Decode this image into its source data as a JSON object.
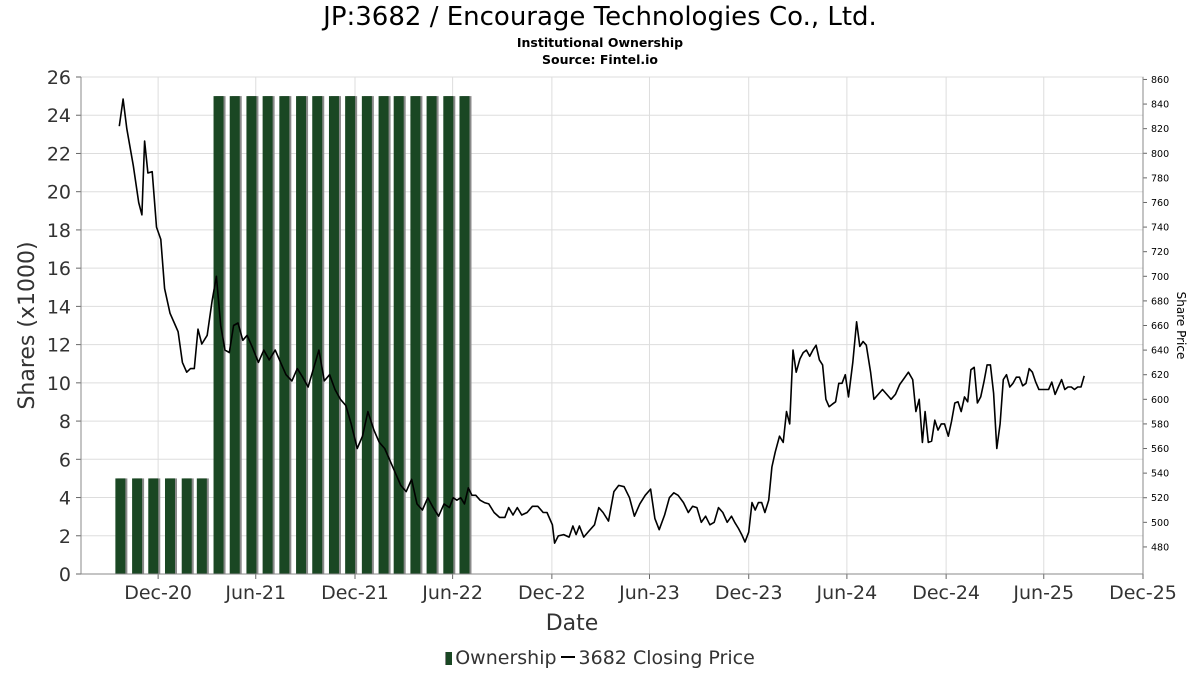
{
  "title": "JP:3682 / Encourage Technologies Co., Ltd.",
  "subtitle1": "Institutional Ownership",
  "subtitle2": "Source: Fintel.io",
  "legend": {
    "ownership_label": "Ownership",
    "price_label": "3682 Closing Price"
  },
  "colors": {
    "bar_fill": "#1a4723",
    "bar_shadow": "#8a8a8a",
    "line": "#000000",
    "grid": "#dddddd"
  },
  "chart_data": {
    "type": "bar",
    "xlabel": "Date",
    "ylabel": "Shares (x1000)",
    "y2label": "Share Price",
    "ylim": [
      0,
      26
    ],
    "y2lim": [
      458,
      862
    ],
    "yticks": [
      0,
      2,
      4,
      6,
      8,
      10,
      12,
      14,
      16,
      18,
      20,
      22,
      24,
      26
    ],
    "y2ticks": [
      480,
      500,
      520,
      540,
      560,
      580,
      600,
      620,
      640,
      660,
      680,
      700,
      720,
      740,
      760,
      780,
      800,
      820,
      840,
      860
    ],
    "xlim": [
      "2020-08-10",
      "2025-12-31"
    ],
    "xticks": [
      {
        "label": "Dec-20",
        "date": "2020-12-31"
      },
      {
        "label": "Jun-21",
        "date": "2021-06-30"
      },
      {
        "label": "Dec-21",
        "date": "2021-12-31"
      },
      {
        "label": "Jun-22",
        "date": "2022-06-30"
      },
      {
        "label": "Dec-22",
        "date": "2022-12-31"
      },
      {
        "label": "Jun-23",
        "date": "2023-06-30"
      },
      {
        "label": "Dec-23",
        "date": "2023-12-31"
      },
      {
        "label": "Jun-24",
        "date": "2024-06-30"
      },
      {
        "label": "Dec-24",
        "date": "2024-12-31"
      },
      {
        "label": "Jun-25",
        "date": "2025-06-30"
      },
      {
        "label": "Dec-25",
        "date": "2025-12-31"
      }
    ],
    "grid": true,
    "legend_position": "bottom",
    "series": [
      {
        "name": "Ownership",
        "type": "bar",
        "axis": "left",
        "x": [
          "2020-10-22",
          "2020-11-22",
          "2020-12-22",
          "2021-01-22",
          "2021-02-22",
          "2021-03-22",
          "2021-04-22",
          "2021-05-22",
          "2021-06-22",
          "2021-07-22",
          "2021-08-22",
          "2021-09-22",
          "2021-10-22",
          "2021-11-22",
          "2021-12-22",
          "2022-01-22",
          "2022-02-22",
          "2022-03-22",
          "2022-04-22",
          "2022-05-22",
          "2022-06-22",
          "2022-07-22"
        ],
        "values": [
          5,
          5,
          5,
          5,
          5,
          5,
          25,
          25,
          25,
          25,
          25,
          25,
          25,
          25,
          25,
          25,
          25,
          25,
          25,
          25,
          25,
          25
        ]
      },
      {
        "name": "3682 Closing Price",
        "type": "line",
        "axis": "right",
        "points": [
          [
            "2020-10-20",
            822
          ],
          [
            "2020-10-27",
            844
          ],
          [
            "2020-11-03",
            820
          ],
          [
            "2020-11-15",
            790
          ],
          [
            "2020-11-25",
            760
          ],
          [
            "2020-12-01",
            750
          ],
          [
            "2020-12-06",
            810
          ],
          [
            "2020-12-12",
            784
          ],
          [
            "2020-12-20",
            785
          ],
          [
            "2020-12-28",
            740
          ],
          [
            "2021-01-05",
            730
          ],
          [
            "2021-01-12",
            690
          ],
          [
            "2021-01-22",
            670
          ],
          [
            "2021-02-01",
            660
          ],
          [
            "2021-02-06",
            655
          ],
          [
            "2021-02-14",
            630
          ],
          [
            "2021-02-22",
            622
          ],
          [
            "2021-03-01",
            625
          ],
          [
            "2021-03-08",
            625
          ],
          [
            "2021-03-15",
            657
          ],
          [
            "2021-03-22",
            645
          ],
          [
            "2021-04-01",
            652
          ],
          [
            "2021-04-10",
            680
          ],
          [
            "2021-04-18",
            700
          ],
          [
            "2021-04-26",
            660
          ],
          [
            "2021-05-04",
            640
          ],
          [
            "2021-05-12",
            638
          ],
          [
            "2021-05-20",
            660
          ],
          [
            "2021-05-28",
            662
          ],
          [
            "2021-06-06",
            648
          ],
          [
            "2021-06-14",
            652
          ],
          [
            "2021-06-24",
            642
          ],
          [
            "2021-07-05",
            630
          ],
          [
            "2021-07-15",
            640
          ],
          [
            "2021-07-25",
            632
          ],
          [
            "2021-08-05",
            640
          ],
          [
            "2021-08-15",
            630
          ],
          [
            "2021-08-25",
            620
          ],
          [
            "2021-09-05",
            615
          ],
          [
            "2021-09-15",
            625
          ],
          [
            "2021-09-25",
            618
          ],
          [
            "2021-10-05",
            610
          ],
          [
            "2021-10-15",
            625
          ],
          [
            "2021-10-25",
            640
          ],
          [
            "2021-11-04",
            615
          ],
          [
            "2021-11-14",
            620
          ],
          [
            "2021-11-24",
            608
          ],
          [
            "2021-12-04",
            600
          ],
          [
            "2021-12-14",
            595
          ],
          [
            "2021-12-24",
            580
          ],
          [
            "2022-01-04",
            560
          ],
          [
            "2022-01-14",
            570
          ],
          [
            "2022-01-24",
            590
          ],
          [
            "2022-02-04",
            575
          ],
          [
            "2022-02-14",
            565
          ],
          [
            "2022-02-24",
            560
          ],
          [
            "2022-03-06",
            550
          ],
          [
            "2022-03-16",
            540
          ],
          [
            "2022-03-26",
            530
          ],
          [
            "2022-04-05",
            525
          ],
          [
            "2022-04-15",
            535
          ],
          [
            "2022-04-25",
            515
          ],
          [
            "2022-05-05",
            510
          ],
          [
            "2022-05-15",
            520
          ],
          [
            "2022-05-25",
            512
          ],
          [
            "2022-06-04",
            505
          ],
          [
            "2022-06-14",
            515
          ],
          [
            "2022-06-24",
            512
          ],
          [
            "2022-07-01",
            520
          ],
          [
            "2022-07-08",
            518
          ],
          [
            "2022-07-15",
            520
          ],
          [
            "2022-07-22",
            515
          ],
          [
            "2022-07-29",
            528
          ],
          [
            "2022-08-05",
            522
          ],
          [
            "2022-08-12",
            522
          ],
          [
            "2022-08-20",
            518
          ],
          [
            "2022-08-28",
            516
          ],
          [
            "2022-09-05",
            515
          ],
          [
            "2022-09-15",
            508
          ],
          [
            "2022-09-25",
            504
          ],
          [
            "2022-10-05",
            504
          ],
          [
            "2022-10-12",
            512
          ],
          [
            "2022-10-20",
            506
          ],
          [
            "2022-10-28",
            512
          ],
          [
            "2022-11-05",
            506
          ],
          [
            "2022-11-15",
            508
          ],
          [
            "2022-11-25",
            513
          ],
          [
            "2022-12-05",
            513
          ],
          [
            "2022-12-15",
            508
          ],
          [
            "2022-12-22",
            508
          ],
          [
            "2023-01-01",
            498
          ],
          [
            "2023-01-05",
            483
          ],
          [
            "2023-01-12",
            489
          ],
          [
            "2023-01-22",
            490
          ],
          [
            "2023-02-01",
            488
          ],
          [
            "2023-02-08",
            497
          ],
          [
            "2023-02-14",
            490
          ],
          [
            "2023-02-20",
            497
          ],
          [
            "2023-02-28",
            488
          ],
          [
            "2023-03-10",
            493
          ],
          [
            "2023-03-20",
            498
          ],
          [
            "2023-03-28",
            512
          ],
          [
            "2023-04-05",
            508
          ],
          [
            "2023-04-15",
            501
          ],
          [
            "2023-04-25",
            525
          ],
          [
            "2023-05-04",
            530
          ],
          [
            "2023-05-14",
            529
          ],
          [
            "2023-05-24",
            520
          ],
          [
            "2023-06-02",
            505
          ],
          [
            "2023-06-12",
            515
          ],
          [
            "2023-06-22",
            522
          ],
          [
            "2023-07-02",
            527
          ],
          [
            "2023-07-10",
            503
          ],
          [
            "2023-07-18",
            494
          ],
          [
            "2023-07-28",
            506
          ],
          [
            "2023-08-06",
            520
          ],
          [
            "2023-08-14",
            524
          ],
          [
            "2023-08-22",
            522
          ],
          [
            "2023-09-01",
            516
          ],
          [
            "2023-09-10",
            508
          ],
          [
            "2023-09-18",
            513
          ],
          [
            "2023-09-26",
            512
          ],
          [
            "2023-10-04",
            500
          ],
          [
            "2023-10-12",
            505
          ],
          [
            "2023-10-20",
            498
          ],
          [
            "2023-10-28",
            500
          ],
          [
            "2023-11-05",
            512
          ],
          [
            "2023-11-13",
            508
          ],
          [
            "2023-11-21",
            500
          ],
          [
            "2023-11-29",
            505
          ],
          [
            "2023-12-05",
            500
          ],
          [
            "2023-12-12",
            495
          ],
          [
            "2023-12-18",
            490
          ],
          [
            "2023-12-24",
            484
          ],
          [
            "2023-12-31",
            492
          ],
          [
            "2024-01-06",
            516
          ],
          [
            "2024-01-12",
            510
          ],
          [
            "2024-01-18",
            516
          ],
          [
            "2024-01-24",
            516
          ],
          [
            "2024-01-30",
            508
          ],
          [
            "2024-02-06",
            518
          ],
          [
            "2024-02-12",
            545
          ],
          [
            "2024-02-18",
            557
          ],
          [
            "2024-02-26",
            570
          ],
          [
            "2024-03-04",
            565
          ],
          [
            "2024-03-10",
            590
          ],
          [
            "2024-03-16",
            580
          ],
          [
            "2024-03-22",
            640
          ],
          [
            "2024-03-28",
            622
          ],
          [
            "2024-04-04",
            633
          ],
          [
            "2024-04-10",
            638
          ],
          [
            "2024-04-16",
            640
          ],
          [
            "2024-04-22",
            635
          ],
          [
            "2024-04-28",
            640
          ],
          [
            "2024-05-04",
            644
          ],
          [
            "2024-05-10",
            632
          ],
          [
            "2024-05-16",
            628
          ],
          [
            "2024-05-22",
            600
          ],
          [
            "2024-05-28",
            594
          ],
          [
            "2024-06-03",
            596
          ],
          [
            "2024-06-09",
            598
          ],
          [
            "2024-06-15",
            613
          ],
          [
            "2024-06-21",
            613
          ],
          [
            "2024-06-27",
            620
          ],
          [
            "2024-07-03",
            602
          ],
          [
            "2024-07-11",
            630
          ],
          [
            "2024-07-18",
            663
          ],
          [
            "2024-07-24",
            643
          ],
          [
            "2024-07-30",
            647
          ],
          [
            "2024-08-05",
            644
          ],
          [
            "2024-08-13",
            622
          ],
          [
            "2024-08-19",
            600
          ],
          [
            "2024-08-27",
            604
          ],
          [
            "2024-09-04",
            608
          ],
          [
            "2024-09-12",
            604
          ],
          [
            "2024-09-20",
            600
          ],
          [
            "2024-09-28",
            604
          ],
          [
            "2024-10-06",
            612
          ],
          [
            "2024-10-14",
            617
          ],
          [
            "2024-10-22",
            622
          ],
          [
            "2024-10-30",
            616
          ],
          [
            "2024-11-05",
            590
          ],
          [
            "2024-11-11",
            600
          ],
          [
            "2024-11-17",
            565
          ],
          [
            "2024-11-22",
            590
          ],
          [
            "2024-11-28",
            565
          ],
          [
            "2024-12-04",
            566
          ],
          [
            "2024-12-10",
            583
          ],
          [
            "2024-12-16",
            575
          ],
          [
            "2024-12-22",
            580
          ],
          [
            "2024-12-28",
            580
          ],
          [
            "2025-01-04",
            570
          ],
          [
            "2025-01-10",
            582
          ],
          [
            "2025-01-16",
            597
          ],
          [
            "2025-01-22",
            598
          ],
          [
            "2025-01-28",
            590
          ],
          [
            "2025-02-03",
            602
          ],
          [
            "2025-02-09",
            598
          ],
          [
            "2025-02-15",
            624
          ],
          [
            "2025-02-21",
            626
          ],
          [
            "2025-02-27",
            597
          ],
          [
            "2025-03-05",
            602
          ],
          [
            "2025-03-11",
            614
          ],
          [
            "2025-03-17",
            628
          ],
          [
            "2025-03-23",
            628
          ],
          [
            "2025-03-29",
            605
          ],
          [
            "2025-04-04",
            560
          ],
          [
            "2025-04-10",
            580
          ],
          [
            "2025-04-16",
            616
          ],
          [
            "2025-04-22",
            620
          ],
          [
            "2025-04-28",
            610
          ],
          [
            "2025-05-04",
            613
          ],
          [
            "2025-05-10",
            618
          ],
          [
            "2025-05-16",
            618
          ],
          [
            "2025-05-22",
            611
          ],
          [
            "2025-05-28",
            613
          ],
          [
            "2025-06-03",
            625
          ],
          [
            "2025-06-09",
            622
          ],
          [
            "2025-06-15",
            614
          ],
          [
            "2025-06-21",
            608
          ],
          [
            "2025-06-27",
            608
          ],
          [
            "2025-07-03",
            608
          ],
          [
            "2025-07-09",
            608
          ],
          [
            "2025-07-15",
            614
          ],
          [
            "2025-07-21",
            604
          ],
          [
            "2025-07-27",
            610
          ],
          [
            "2025-08-02",
            616
          ],
          [
            "2025-08-08",
            608
          ],
          [
            "2025-08-14",
            610
          ],
          [
            "2025-08-20",
            610
          ],
          [
            "2025-08-26",
            608
          ],
          [
            "2025-09-01",
            610
          ],
          [
            "2025-09-07",
            610
          ],
          [
            "2025-09-13",
            619
          ]
        ]
      }
    ]
  }
}
